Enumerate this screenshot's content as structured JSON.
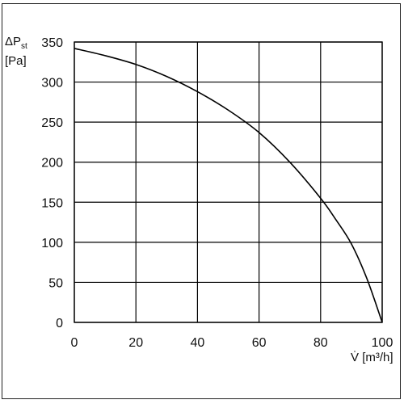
{
  "chart_data": {
    "type": "line",
    "title": "",
    "ylabel": {
      "base": "ΔP",
      "sub": "st",
      "unit": "[Pa]"
    },
    "xlabel": {
      "symbol": "V̇",
      "unit": "[m³/h]"
    },
    "xlim": [
      0,
      100
    ],
    "ylim": [
      0,
      350
    ],
    "xticks": [
      0,
      20,
      40,
      60,
      80,
      100
    ],
    "yticks": [
      0,
      50,
      100,
      150,
      200,
      250,
      300,
      350
    ],
    "xtick_labels": [
      "0",
      "20",
      "40",
      "60",
      "80",
      "100"
    ],
    "ytick_labels": [
      "0",
      "50",
      "100",
      "150",
      "200",
      "250",
      "300",
      "350"
    ],
    "grid": true,
    "series": [
      {
        "x": [
          0,
          10,
          20,
          30,
          40,
          50,
          60,
          70,
          80,
          85,
          90,
          95,
          100
        ],
        "y": [
          342,
          333,
          322,
          307,
          288,
          265,
          237,
          200,
          155,
          128,
          98,
          55,
          0
        ]
      }
    ],
    "colors": {
      "line": "#000000",
      "grid": "#000000",
      "frame": "#222222"
    }
  }
}
